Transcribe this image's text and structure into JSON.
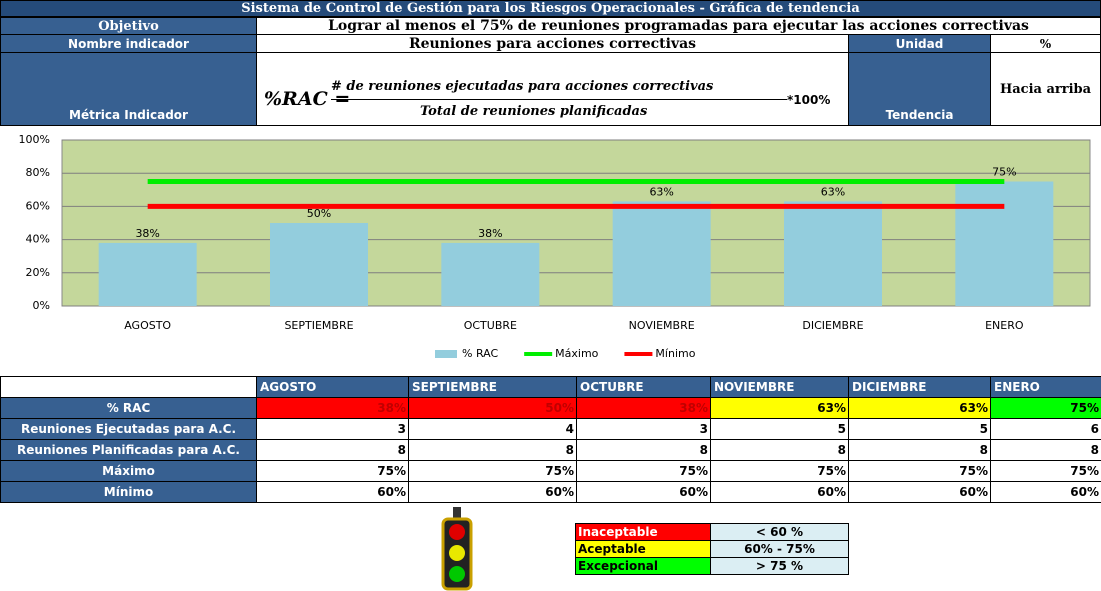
{
  "header": {
    "title": "Sistema de Control de Gestión para los Riesgos Operacionales - Gráfica de tendencia",
    "objetivo_label": "Objetivo",
    "objetivo": "Lograr al menos el 75% de reuniones programadas para ejecutar las acciones correctivas",
    "nombre_label": "Nombre indicador",
    "nombre": "Reuniones para acciones correctivas",
    "unidad_label": "Unidad",
    "unidad": "%",
    "metrica_label": "Métrica Indicador",
    "formula_lhs": "%RAC =",
    "formula_num": "# de reuniones ejecutadas para  acciones correctivas",
    "formula_den": "Total de reuniones planificadas",
    "formula_factor": "*100%",
    "tendencia_label": "Tendencia",
    "tendencia": "Hacia arriba"
  },
  "chart_data": {
    "type": "bar",
    "categories": [
      "AGOSTO",
      "SEPTIEMBRE",
      "OCTUBRE",
      "NOVIEMBRE",
      "DICIEMBRE",
      "ENERO"
    ],
    "series": [
      {
        "name": "% RAC",
        "type": "bar",
        "color": "#93cddd",
        "values": [
          38,
          50,
          38,
          63,
          63,
          75
        ],
        "value_labels": [
          "38%",
          "50%",
          "38%",
          "63%",
          "63%",
          "75%"
        ]
      },
      {
        "name": "Máximo",
        "type": "line",
        "color": "#00ee00",
        "values": [
          75,
          75,
          75,
          75,
          75,
          75
        ]
      },
      {
        "name": "Mínimo",
        "type": "line",
        "color": "#ff0000",
        "values": [
          60,
          60,
          60,
          60,
          60,
          60
        ]
      }
    ],
    "ylim": [
      0,
      100
    ],
    "yticks": [
      {
        "value": 0,
        "label": "0%"
      },
      {
        "value": 20,
        "label": "20%"
      },
      {
        "value": 40,
        "label": "40%"
      },
      {
        "value": 60,
        "label": "60%"
      },
      {
        "value": 80,
        "label": "80%"
      },
      {
        "value": 100,
        "label": "100%"
      }
    ],
    "grid": true,
    "plot_color": "#c4d79b"
  },
  "table": {
    "columns": [
      "AGOSTO",
      "SEPTIEMBRE",
      "OCTUBRE",
      "NOVIEMBRE",
      "DICIEMBRE",
      "ENERO"
    ],
    "rows": [
      {
        "label": "% RAC",
        "values": [
          "38%",
          "50%",
          "38%",
          "63%",
          "63%",
          "75%"
        ],
        "colors": [
          "#ff0000",
          "#ff0000",
          "#ff0000",
          "#ffff00",
          "#ffff00",
          "#00ff00"
        ]
      },
      {
        "label": "Reuniones Ejecutadas para A.C.",
        "values": [
          3,
          4,
          3,
          5,
          5,
          6
        ]
      },
      {
        "label": "Reuniones Planificadas para A.C.",
        "values": [
          8,
          8,
          8,
          8,
          8,
          8
        ]
      },
      {
        "label": "Máximo",
        "values": [
          "75%",
          "75%",
          "75%",
          "75%",
          "75%",
          "75%"
        ]
      },
      {
        "label": "Mínimo",
        "values": [
          "60%",
          "60%",
          "60%",
          "60%",
          "60%",
          "60%"
        ]
      }
    ]
  },
  "legend_table": {
    "rows": [
      {
        "label": "Inaceptable",
        "range": "< 60 %",
        "color": "#ff0000"
      },
      {
        "label": "Aceptable",
        "range": "60% - 75%",
        "color": "#ffff00"
      },
      {
        "label": "Excepcional",
        "range": "> 75 %",
        "color": "#00ff00"
      }
    ]
  }
}
